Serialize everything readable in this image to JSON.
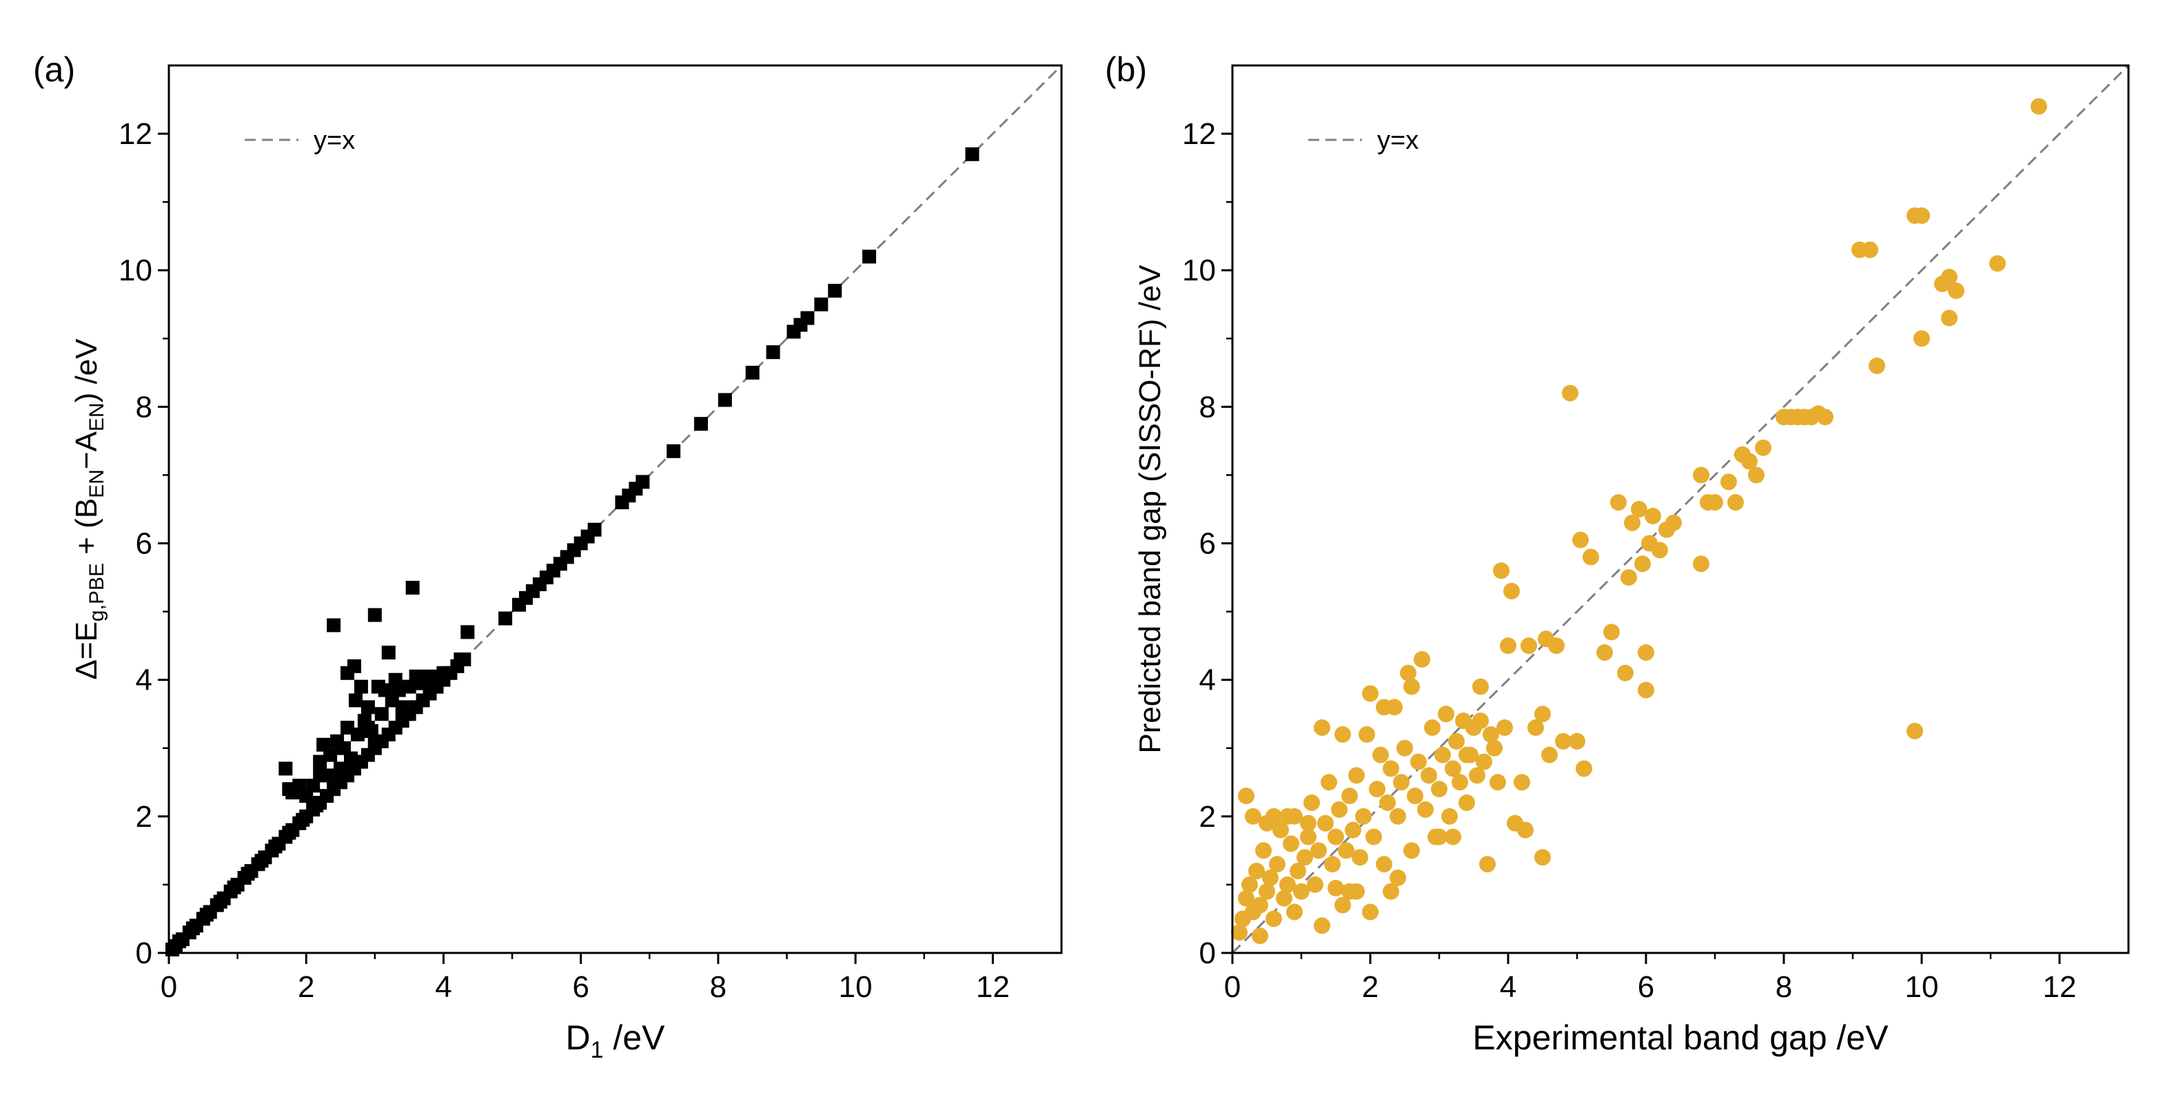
{
  "chart_data": [
    {
      "panel": "(a)",
      "type": "scatter",
      "title": "",
      "xlabel": "D",
      "xlabel_sub": "1",
      "xlabel_unit": " /eV",
      "ylabel_parts": [
        {
          "t": "Δ=E"
        },
        {
          "t": "g,PBE",
          "sub": true
        },
        {
          "t": " + (B"
        },
        {
          "t": "EN",
          "sub": true
        },
        {
          "t": "−A"
        },
        {
          "t": "EN",
          "sub": true
        },
        {
          "t": ") /eV"
        }
      ],
      "xlim": [
        0,
        13
      ],
      "ylim": [
        0,
        13
      ],
      "xticks": [
        0,
        2,
        4,
        6,
        8,
        10,
        12
      ],
      "yticks": [
        0,
        2,
        4,
        6,
        8,
        10,
        12
      ],
      "tick_labels": [
        "0",
        "2",
        "4",
        "6",
        "8",
        "10",
        "12"
      ],
      "marker": "square",
      "color": "#000000",
      "legend": {
        "label": "y=x",
        "style": "dashed",
        "color": "#808080",
        "position": "top-left"
      },
      "reference_line": "y=x",
      "points": [
        [
          0.05,
          0.05
        ],
        [
          0.1,
          0.1
        ],
        [
          0.15,
          0.17
        ],
        [
          0.2,
          0.2
        ],
        [
          0.3,
          0.3
        ],
        [
          0.35,
          0.36
        ],
        [
          0.4,
          0.4
        ],
        [
          0.5,
          0.5
        ],
        [
          0.55,
          0.56
        ],
        [
          0.6,
          0.6
        ],
        [
          0.7,
          0.7
        ],
        [
          0.75,
          0.75
        ],
        [
          0.8,
          0.8
        ],
        [
          0.9,
          0.9
        ],
        [
          0.95,
          0.96
        ],
        [
          1.0,
          1.0
        ],
        [
          1.1,
          1.1
        ],
        [
          1.15,
          1.16
        ],
        [
          1.2,
          1.2
        ],
        [
          1.3,
          1.3
        ],
        [
          1.35,
          1.35
        ],
        [
          1.4,
          1.4
        ],
        [
          1.5,
          1.5
        ],
        [
          1.55,
          1.56
        ],
        [
          1.6,
          1.6
        ],
        [
          1.7,
          1.7
        ],
        [
          1.75,
          1.76
        ],
        [
          1.8,
          1.8
        ],
        [
          1.9,
          1.9
        ],
        [
          1.95,
          1.95
        ],
        [
          2.0,
          2.0
        ],
        [
          2.1,
          2.1
        ],
        [
          2.15,
          2.16
        ],
        [
          2.2,
          2.2
        ],
        [
          2.3,
          2.3
        ],
        [
          2.4,
          2.4
        ],
        [
          2.5,
          2.5
        ],
        [
          2.6,
          2.6
        ],
        [
          2.7,
          2.7
        ],
        [
          2.8,
          2.8
        ],
        [
          2.9,
          2.9
        ],
        [
          3.0,
          3.0
        ],
        [
          3.1,
          3.1
        ],
        [
          3.2,
          3.2
        ],
        [
          3.3,
          3.3
        ],
        [
          3.4,
          3.4
        ],
        [
          3.5,
          3.5
        ],
        [
          3.6,
          3.6
        ],
        [
          3.7,
          3.7
        ],
        [
          3.8,
          3.8
        ],
        [
          3.9,
          3.9
        ],
        [
          4.0,
          4.0
        ],
        [
          4.1,
          4.1
        ],
        [
          4.2,
          4.2
        ],
        [
          4.3,
          4.3
        ],
        [
          1.7,
          2.7
        ],
        [
          1.75,
          2.4
        ],
        [
          1.8,
          2.35
        ],
        [
          1.9,
          2.45
        ],
        [
          2.0,
          2.3
        ],
        [
          2.1,
          2.45
        ],
        [
          2.2,
          2.8
        ],
        [
          2.25,
          3.05
        ],
        [
          2.3,
          2.6
        ],
        [
          2.35,
          2.9
        ],
        [
          2.4,
          4.8
        ],
        [
          2.45,
          3.1
        ],
        [
          2.5,
          2.7
        ],
        [
          2.55,
          3.0
        ],
        [
          2.6,
          3.3
        ],
        [
          2.65,
          2.85
        ],
        [
          2.7,
          4.2
        ],
        [
          2.72,
          3.7
        ],
        [
          2.75,
          3.2
        ],
        [
          2.8,
          3.9
        ],
        [
          2.85,
          3.4
        ],
        [
          2.9,
          3.6
        ],
        [
          2.95,
          3.25
        ],
        [
          3.0,
          4.95
        ],
        [
          3.05,
          3.9
        ],
        [
          3.1,
          3.5
        ],
        [
          3.15,
          3.85
        ],
        [
          3.2,
          4.4
        ],
        [
          3.25,
          3.7
        ],
        [
          3.3,
          4.0
        ],
        [
          3.35,
          3.85
        ],
        [
          3.4,
          3.6
        ],
        [
          3.45,
          3.5
        ],
        [
          3.5,
          3.9
        ],
        [
          3.55,
          5.35
        ],
        [
          3.6,
          4.05
        ],
        [
          3.7,
          3.95
        ],
        [
          3.8,
          4.05
        ],
        [
          3.9,
          3.9
        ],
        [
          4.0,
          4.1
        ],
        [
          4.25,
          4.3
        ],
        [
          4.35,
          4.7
        ],
        [
          2.6,
          4.1
        ],
        [
          2.9,
          3.3
        ],
        [
          3.0,
          3.1
        ],
        [
          2.2,
          2.6
        ],
        [
          4.9,
          4.9
        ],
        [
          5.1,
          5.1
        ],
        [
          5.2,
          5.2
        ],
        [
          5.3,
          5.3
        ],
        [
          5.4,
          5.4
        ],
        [
          5.5,
          5.5
        ],
        [
          5.6,
          5.6
        ],
        [
          5.7,
          5.7
        ],
        [
          5.8,
          5.8
        ],
        [
          5.9,
          5.9
        ],
        [
          6.0,
          6.0
        ],
        [
          6.1,
          6.1
        ],
        [
          6.2,
          6.2
        ],
        [
          6.6,
          6.6
        ],
        [
          6.7,
          6.7
        ],
        [
          6.8,
          6.8
        ],
        [
          6.9,
          6.9
        ],
        [
          7.35,
          7.35
        ],
        [
          7.75,
          7.75
        ],
        [
          8.1,
          8.1
        ],
        [
          8.5,
          8.5
        ],
        [
          8.8,
          8.8
        ],
        [
          9.1,
          9.1
        ],
        [
          9.2,
          9.2
        ],
        [
          9.3,
          9.3
        ],
        [
          9.5,
          9.5
        ],
        [
          9.7,
          9.7
        ],
        [
          10.2,
          10.2
        ],
        [
          11.7,
          11.7
        ]
      ]
    },
    {
      "panel": "(b)",
      "type": "scatter",
      "title": "",
      "xlabel": "Experimental band gap /eV",
      "ylabel": "Predicted band gap (SISSO-RF) /eV",
      "xlim": [
        0,
        13
      ],
      "ylim": [
        0,
        13
      ],
      "xticks": [
        0,
        2,
        4,
        6,
        8,
        10,
        12
      ],
      "yticks": [
        0,
        2,
        4,
        6,
        8,
        10,
        12
      ],
      "tick_labels": [
        "0",
        "2",
        "4",
        "6",
        "8",
        "10",
        "12"
      ],
      "marker": "circle",
      "color": "#E8AD2E",
      "legend": {
        "label": "y=x",
        "style": "dashed",
        "color": "#808080",
        "position": "top-left"
      },
      "reference_line": "y=x",
      "points": [
        [
          0.1,
          0.3
        ],
        [
          0.15,
          0.5
        ],
        [
          0.2,
          0.8
        ],
        [
          0.25,
          1.0
        ],
        [
          0.3,
          0.6
        ],
        [
          0.35,
          1.2
        ],
        [
          0.4,
          0.7
        ],
        [
          0.45,
          1.5
        ],
        [
          0.5,
          0.9
        ],
        [
          0.55,
          1.1
        ],
        [
          0.6,
          0.5
        ],
        [
          0.65,
          1.3
        ],
        [
          0.7,
          1.8
        ],
        [
          0.75,
          0.8
        ],
        [
          0.8,
          1.0
        ],
        [
          0.85,
          1.6
        ],
        [
          0.9,
          2.0
        ],
        [
          0.95,
          1.2
        ],
        [
          1.0,
          0.9
        ],
        [
          1.05,
          1.4
        ],
        [
          1.1,
          1.7
        ],
        [
          1.15,
          2.2
        ],
        [
          1.2,
          1.0
        ],
        [
          1.25,
          1.5
        ],
        [
          1.3,
          0.4
        ],
        [
          1.35,
          1.9
        ],
        [
          1.4,
          2.5
        ],
        [
          1.45,
          1.3
        ],
        [
          1.5,
          1.7
        ],
        [
          1.55,
          2.1
        ],
        [
          1.6,
          0.7
        ],
        [
          1.65,
          1.5
        ],
        [
          1.7,
          2.3
        ],
        [
          1.75,
          1.8
        ],
        [
          1.8,
          2.6
        ],
        [
          1.85,
          1.4
        ],
        [
          1.9,
          2.0
        ],
        [
          1.95,
          3.2
        ],
        [
          2.0,
          0.6
        ],
        [
          2.05,
          1.7
        ],
        [
          2.1,
          2.4
        ],
        [
          2.15,
          2.9
        ],
        [
          2.2,
          1.3
        ],
        [
          2.25,
          2.2
        ],
        [
          2.3,
          2.7
        ],
        [
          2.35,
          3.6
        ],
        [
          2.4,
          2.0
        ],
        [
          2.45,
          2.5
        ],
        [
          2.5,
          3.0
        ],
        [
          2.55,
          4.1
        ],
        [
          2.6,
          1.5
        ],
        [
          2.65,
          2.3
        ],
        [
          2.7,
          2.8
        ],
        [
          2.75,
          4.3
        ],
        [
          2.8,
          2.1
        ],
        [
          2.85,
          2.6
        ],
        [
          2.9,
          3.3
        ],
        [
          2.95,
          1.7
        ],
        [
          3.0,
          2.4
        ],
        [
          3.05,
          2.9
        ],
        [
          3.1,
          3.5
        ],
        [
          3.15,
          2.0
        ],
        [
          3.2,
          2.7
        ],
        [
          3.25,
          3.1
        ],
        [
          3.3,
          2.5
        ],
        [
          3.35,
          3.4
        ],
        [
          3.4,
          2.2
        ],
        [
          3.45,
          2.9
        ],
        [
          3.5,
          3.3
        ],
        [
          3.55,
          2.6
        ],
        [
          3.6,
          3.9
        ],
        [
          3.65,
          2.8
        ],
        [
          3.7,
          1.3
        ],
        [
          3.75,
          3.2
        ],
        [
          3.8,
          3.0
        ],
        [
          3.85,
          2.5
        ],
        [
          3.9,
          5.6
        ],
        [
          3.95,
          3.3
        ],
        [
          4.0,
          4.5
        ],
        [
          4.05,
          5.3
        ],
        [
          4.1,
          1.9
        ],
        [
          4.2,
          2.5
        ],
        [
          4.25,
          1.8
        ],
        [
          4.3,
          4.5
        ],
        [
          4.4,
          3.3
        ],
        [
          4.5,
          3.5
        ],
        [
          4.5,
          1.4
        ],
        [
          4.55,
          4.6
        ],
        [
          4.6,
          2.9
        ],
        [
          4.7,
          4.5
        ],
        [
          4.8,
          3.1
        ],
        [
          4.9,
          8.2
        ],
        [
          5.0,
          3.1
        ],
        [
          5.05,
          6.05
        ],
        [
          5.1,
          2.7
        ],
        [
          5.2,
          5.8
        ],
        [
          5.4,
          4.4
        ],
        [
          5.5,
          4.7
        ],
        [
          5.6,
          6.6
        ],
        [
          5.7,
          4.1
        ],
        [
          5.75,
          5.5
        ],
        [
          5.8,
          6.3
        ],
        [
          5.9,
          6.5
        ],
        [
          5.95,
          5.7
        ],
        [
          6.0,
          3.85
        ],
        [
          6.0,
          4.4
        ],
        [
          6.05,
          6.0
        ],
        [
          6.1,
          6.4
        ],
        [
          6.2,
          5.9
        ],
        [
          6.3,
          6.2
        ],
        [
          6.4,
          6.3
        ],
        [
          6.8,
          5.7
        ],
        [
          6.8,
          7.0
        ],
        [
          6.9,
          6.6
        ],
        [
          7.0,
          6.6
        ],
        [
          7.2,
          6.9
        ],
        [
          7.3,
          6.6
        ],
        [
          7.4,
          7.3
        ],
        [
          7.5,
          7.2
        ],
        [
          7.6,
          7.0
        ],
        [
          7.7,
          7.4
        ],
        [
          8.0,
          7.85
        ],
        [
          8.1,
          7.85
        ],
        [
          8.2,
          7.85
        ],
        [
          8.3,
          7.85
        ],
        [
          8.4,
          7.85
        ],
        [
          8.5,
          7.9
        ],
        [
          8.6,
          7.85
        ],
        [
          9.1,
          10.3
        ],
        [
          9.25,
          10.3
        ],
        [
          9.35,
          8.6
        ],
        [
          9.9,
          10.8
        ],
        [
          9.9,
          3.25
        ],
        [
          10.0,
          9.0
        ],
        [
          10.0,
          10.8
        ],
        [
          10.3,
          9.8
        ],
        [
          10.4,
          9.9
        ],
        [
          10.4,
          9.3
        ],
        [
          10.5,
          9.7
        ],
        [
          11.1,
          10.1
        ],
        [
          11.7,
          12.4
        ],
        [
          0.2,
          2.3
        ],
        [
          0.3,
          2.0
        ],
        [
          0.5,
          1.9
        ],
        [
          0.6,
          2.0
        ],
        [
          0.8,
          2.0
        ],
        [
          1.1,
          1.9
        ],
        [
          1.3,
          3.3
        ],
        [
          1.6,
          3.2
        ],
        [
          1.8,
          0.9
        ],
        [
          0.4,
          0.25
        ],
        [
          0.9,
          0.6
        ],
        [
          1.5,
          0.95
        ],
        [
          2.0,
          3.8
        ],
        [
          2.2,
          3.6
        ],
        [
          2.6,
          3.9
        ],
        [
          3.2,
          1.7
        ],
        [
          3.0,
          1.7
        ],
        [
          3.4,
          2.9
        ],
        [
          3.6,
          3.4
        ],
        [
          2.3,
          0.9
        ],
        [
          2.4,
          1.1
        ],
        [
          1.7,
          0.9
        ]
      ]
    }
  ]
}
